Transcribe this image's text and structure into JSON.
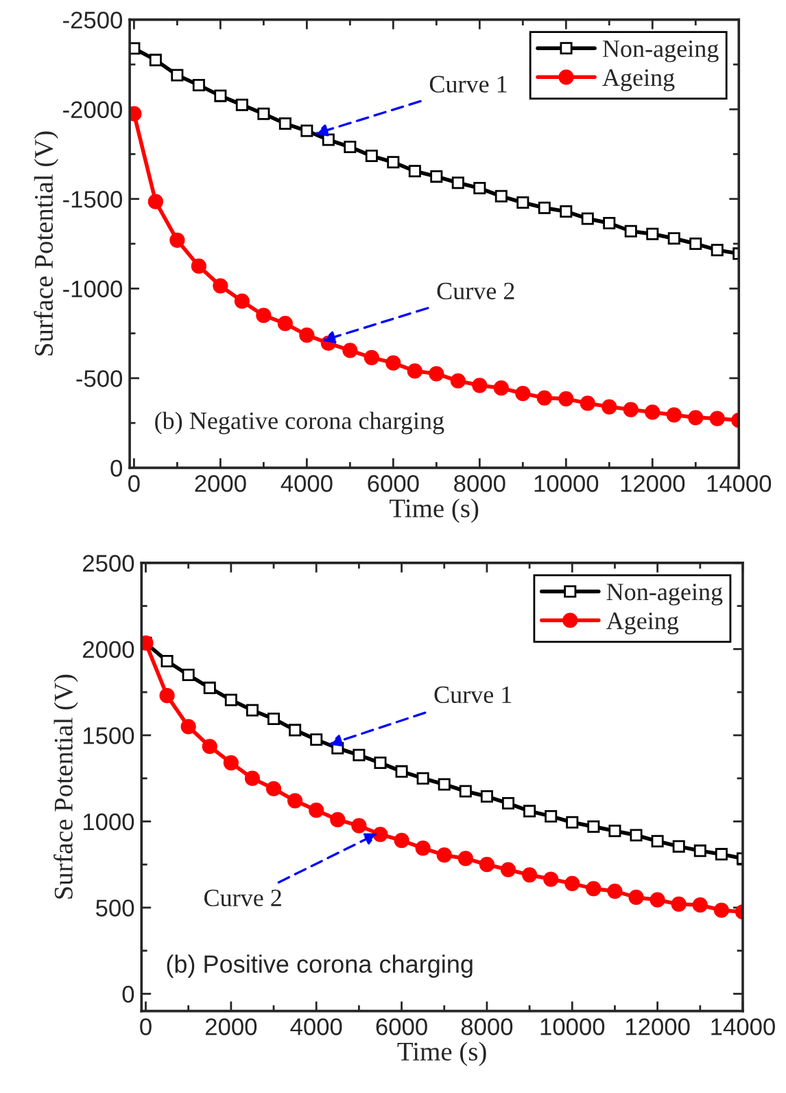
{
  "chart_data": [
    {
      "type": "line",
      "xlabel": "Time (s)",
      "ylabel": "Surface Potential (V)",
      "x": [
        0,
        500,
        1000,
        1500,
        2000,
        2500,
        3000,
        3500,
        4000,
        4500,
        5000,
        5500,
        6000,
        6500,
        7000,
        7500,
        8000,
        8500,
        9000,
        9500,
        10000,
        10500,
        11000,
        11500,
        12000,
        12500,
        13000,
        13500,
        14000
      ],
      "series": [
        {
          "name": "Non-ageing",
          "color": "#000000",
          "marker": "square",
          "values": [
            -2340,
            -2275,
            -2190,
            -2135,
            -2075,
            -2025,
            -1975,
            -1920,
            -1880,
            -1830,
            -1790,
            -1740,
            -1705,
            -1655,
            -1625,
            -1590,
            -1560,
            -1515,
            -1480,
            -1450,
            -1430,
            -1390,
            -1365,
            -1320,
            -1305,
            -1280,
            -1250,
            -1215,
            -1195
          ]
        },
        {
          "name": "Ageing",
          "color": "#ff0000",
          "marker": "circle",
          "values": [
            -1975,
            -1485,
            -1270,
            -1125,
            -1015,
            -930,
            -850,
            -805,
            -740,
            -695,
            -655,
            -615,
            -585,
            -540,
            -525,
            -485,
            -460,
            -445,
            -415,
            -390,
            -385,
            -360,
            -340,
            -325,
            -310,
            -295,
            -280,
            -275,
            -265
          ]
        }
      ],
      "xlim": [
        -100,
        14000
      ],
      "xticks": [
        0,
        2000,
        4000,
        6000,
        8000,
        10000,
        12000,
        14000
      ],
      "ylim": [
        0,
        -2500
      ],
      "yticks": [
        0,
        -500,
        -1000,
        -1500,
        -2000,
        -2500
      ],
      "legend": "top right",
      "grid": false,
      "line_style": "solid",
      "annotations": [
        {
          "text": "Curve 1",
          "x": 4180,
          "y": -1862
        },
        {
          "text": "Curve 2",
          "x": 4350,
          "y": -708
        },
        "(b) Negative corona charging"
      ]
    },
    {
      "type": "line",
      "xlabel": "Time (s)",
      "ylabel": "Surface Potential (V)",
      "x": [
        0,
        500,
        1000,
        1500,
        2000,
        2500,
        3000,
        3500,
        4000,
        4500,
        5000,
        5500,
        6000,
        6500,
        7000,
        7500,
        8000,
        8500,
        9000,
        9500,
        10000,
        10500,
        11000,
        11500,
        12000,
        12500,
        13000,
        13500,
        14000
      ],
      "series": [
        {
          "name": "Non-ageing",
          "color": "#000000",
          "marker": "square",
          "values": [
            2035,
            1930,
            1850,
            1775,
            1705,
            1645,
            1595,
            1530,
            1475,
            1425,
            1385,
            1340,
            1290,
            1250,
            1215,
            1175,
            1145,
            1105,
            1060,
            1030,
            995,
            970,
            945,
            920,
            885,
            855,
            830,
            810,
            785
          ]
        },
        {
          "name": "Ageing",
          "color": "#ff0000",
          "marker": "circle",
          "values": [
            2035,
            1730,
            1550,
            1435,
            1340,
            1250,
            1190,
            1120,
            1065,
            1010,
            975,
            925,
            890,
            845,
            805,
            785,
            750,
            720,
            690,
            665,
            640,
            610,
            595,
            560,
            545,
            520,
            515,
            485,
            475
          ]
        }
      ],
      "xlim": [
        -100,
        14000
      ],
      "xticks": [
        0,
        2000,
        4000,
        6000,
        8000,
        10000,
        12000,
        14000
      ],
      "ylim": [
        -100,
        2500
      ],
      "yticks": [
        0,
        500,
        1000,
        1500,
        2000,
        2500
      ],
      "legend": "top right",
      "grid": false,
      "line_style": "solid",
      "annotations": [
        {
          "text": "Curve 1",
          "x": 4290,
          "y": 1446
        },
        {
          "text": "Curve 2",
          "x": 5440,
          "y": 931
        },
        "(b) Positive corona charging"
      ]
    }
  ]
}
